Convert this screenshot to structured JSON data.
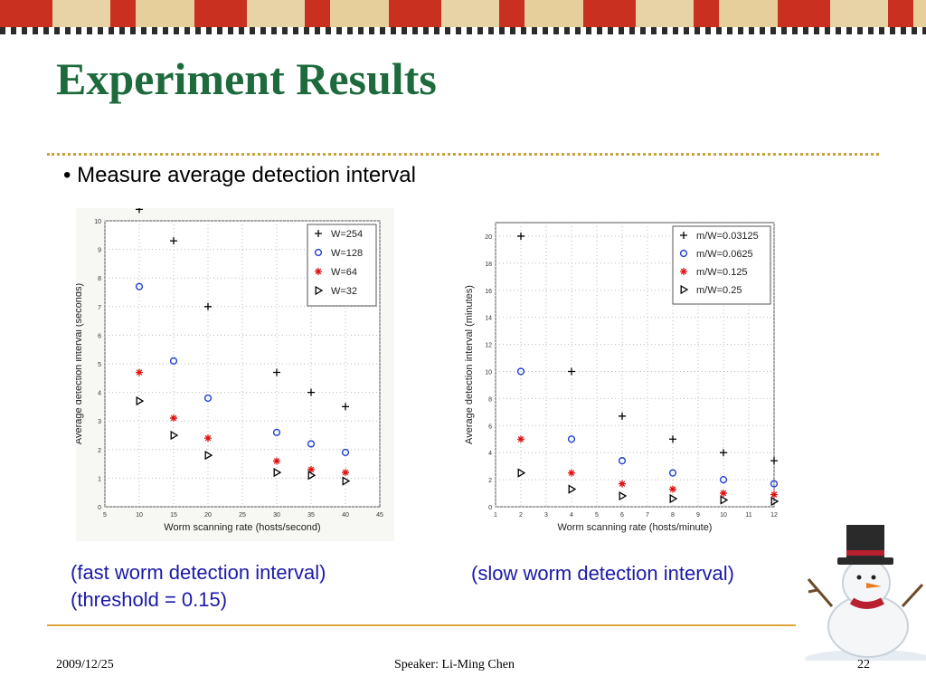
{
  "slide": {
    "title": "Experiment Results",
    "bullet": "• Measure average detection interval",
    "caption_left_1": "(fast worm detection interval)",
    "caption_left_2": "(threshold = 0.15)",
    "caption_right": "(slow worm detection interval)",
    "footer": {
      "date": "2009/12/25",
      "speaker": "Speaker: Li-Ming Chen",
      "page": "22"
    },
    "colors": {
      "title": "#1d6b3c",
      "caption": "#1a1aa8",
      "rule": "#c9a23c"
    }
  },
  "chart_data": [
    {
      "type": "scatter",
      "xlabel": "Worm scanning rate (hosts/second)",
      "ylabel": "Average detection interval (seconds)",
      "xlim": [
        5,
        45
      ],
      "ylim": [
        0,
        10
      ],
      "xticks": [
        5,
        10,
        15,
        20,
        25,
        30,
        35,
        40,
        45
      ],
      "yticks": [
        0,
        1,
        2,
        3,
        4,
        5,
        6,
        7,
        8,
        9,
        10
      ],
      "grid": true,
      "legend_position": "top-right",
      "series": [
        {
          "name": "W=254",
          "marker": "plus",
          "color": "#000000",
          "x": [
            10,
            15,
            20,
            30,
            35,
            40
          ],
          "y": [
            10.4,
            9.3,
            7.0,
            4.7,
            4.0,
            3.5
          ]
        },
        {
          "name": "W=128",
          "marker": "circle",
          "color": "#1f3fd1",
          "x": [
            10,
            15,
            20,
            30,
            35,
            40
          ],
          "y": [
            7.7,
            5.1,
            3.8,
            2.6,
            2.2,
            1.9
          ]
        },
        {
          "name": "W=64",
          "marker": "asterisk",
          "color": "#e01010",
          "x": [
            10,
            15,
            20,
            30,
            35,
            40
          ],
          "y": [
            4.7,
            3.1,
            2.4,
            1.6,
            1.3,
            1.2
          ]
        },
        {
          "name": "W=32",
          "marker": "triangle-right",
          "color": "#000000",
          "x": [
            10,
            15,
            20,
            30,
            35,
            40
          ],
          "y": [
            3.7,
            2.5,
            1.8,
            1.2,
            1.1,
            0.9
          ]
        }
      ]
    },
    {
      "type": "scatter",
      "xlabel": "Worm scanning rate (hosts/minute)",
      "ylabel": "Average detection interval (minutes)",
      "xlim": [
        1,
        12
      ],
      "ylim": [
        0,
        21
      ],
      "xticks": [
        1,
        2,
        3,
        4,
        5,
        6,
        7,
        8,
        9,
        10,
        11,
        12
      ],
      "yticks": [
        0,
        2,
        4,
        6,
        8,
        10,
        12,
        14,
        16,
        18,
        20
      ],
      "grid": true,
      "legend_position": "top-right",
      "series": [
        {
          "name": "m/W=0.03125",
          "marker": "plus",
          "color": "#000000",
          "x": [
            2,
            4,
            6,
            8,
            10,
            12
          ],
          "y": [
            20,
            10,
            6.7,
            5,
            4,
            3.4
          ]
        },
        {
          "name": "m/W=0.0625",
          "marker": "circle",
          "color": "#1f3fd1",
          "x": [
            2,
            4,
            6,
            8,
            10,
            12
          ],
          "y": [
            10,
            5,
            3.4,
            2.5,
            2.0,
            1.7
          ]
        },
        {
          "name": "m/W=0.125",
          "marker": "asterisk",
          "color": "#e01010",
          "x": [
            2,
            4,
            6,
            8,
            10,
            12
          ],
          "y": [
            5,
            2.5,
            1.7,
            1.3,
            1.0,
            0.9
          ]
        },
        {
          "name": "m/W=0.25",
          "marker": "triangle-right",
          "color": "#000000",
          "x": [
            2,
            4,
            6,
            8,
            10,
            12
          ],
          "y": [
            2.5,
            1.3,
            0.8,
            0.6,
            0.5,
            0.4
          ]
        }
      ]
    }
  ]
}
